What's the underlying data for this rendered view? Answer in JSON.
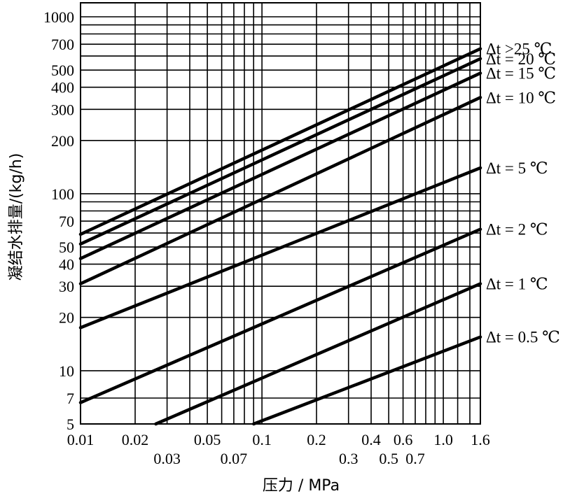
{
  "chart_data": {
    "type": "line",
    "xscale": "log",
    "yscale": "log",
    "xlabel": "压力 / MPa",
    "ylabel": "凝结水排量/(kg/h)",
    "xlim": [
      0.01,
      1.6
    ],
    "ylim": [
      5,
      1200
    ],
    "grid": true,
    "legend": "right, label at end of each line",
    "x_ticks": [
      {
        "value": 0.01,
        "label": "0.01",
        "row": "upper"
      },
      {
        "value": 0.02,
        "label": "0.02",
        "row": "upper"
      },
      {
        "value": 0.03,
        "label": "0.03",
        "row": "lower"
      },
      {
        "value": 0.05,
        "label": "0.05",
        "row": "upper"
      },
      {
        "value": 0.07,
        "label": "0.07",
        "row": "lower"
      },
      {
        "value": 0.1,
        "label": "0.1",
        "row": "upper"
      },
      {
        "value": 0.2,
        "label": "0.2",
        "row": "upper"
      },
      {
        "value": 0.3,
        "label": "0.3",
        "row": "lower"
      },
      {
        "value": 0.4,
        "label": "0.4",
        "row": "upper"
      },
      {
        "value": 0.5,
        "label": "0.5",
        "row": "lower"
      },
      {
        "value": 0.6,
        "label": "0.6",
        "row": "upper"
      },
      {
        "value": 0.7,
        "label": "0.7",
        "row": "lower"
      },
      {
        "value": 1.0,
        "label": "1.0",
        "row": "upper"
      },
      {
        "value": 1.6,
        "label": "1.6",
        "row": "upper"
      }
    ],
    "y_ticks": [
      {
        "value": 5,
        "label": "5"
      },
      {
        "value": 7,
        "label": "7"
      },
      {
        "value": 10,
        "label": "10"
      },
      {
        "value": 20,
        "label": "20"
      },
      {
        "value": 30,
        "label": "30"
      },
      {
        "value": 40,
        "label": "40"
      },
      {
        "value": 50,
        "label": "50"
      },
      {
        "value": 70,
        "label": "70"
      },
      {
        "value": 100,
        "label": "100"
      },
      {
        "value": 200,
        "label": "200"
      },
      {
        "value": 300,
        "label": "300"
      },
      {
        "value": 400,
        "label": "400"
      },
      {
        "value": 500,
        "label": "500"
      },
      {
        "value": 700,
        "label": "700"
      },
      {
        "value": 1000,
        "label": "1000"
      }
    ],
    "x_grid": [
      0.01,
      0.02,
      0.03,
      0.04,
      0.05,
      0.06,
      0.07,
      0.08,
      0.09,
      0.1,
      0.2,
      0.3,
      0.4,
      0.5,
      0.6,
      0.7,
      0.8,
      0.9,
      1.0,
      1.2,
      1.4,
      1.6
    ],
    "y_grid": [
      5,
      7,
      10,
      20,
      30,
      40,
      50,
      60,
      70,
      80,
      90,
      100,
      200,
      300,
      400,
      500,
      600,
      700,
      800,
      900,
      1000
    ],
    "series": [
      {
        "name": "Δt >25 ℃",
        "x": [
          0.01,
          1.6
        ],
        "y": [
          59,
          660
        ]
      },
      {
        "name": "Δt = 20 ℃",
        "x": [
          0.01,
          1.6
        ],
        "y": [
          52,
          580
        ]
      },
      {
        "name": "Δt = 15 ℃",
        "x": [
          0.01,
          1.6
        ],
        "y": [
          43,
          480
        ]
      },
      {
        "name": "Δt = 10 ℃",
        "x": [
          0.01,
          1.6
        ],
        "y": [
          31,
          350
        ]
      },
      {
        "name": "Δt = 5 ℃",
        "x": [
          0.01,
          1.6
        ],
        "y": [
          17.5,
          140
        ]
      },
      {
        "name": "Δt = 2 ℃",
        "x": [
          0.01,
          1.6
        ],
        "y": [
          6.6,
          63
        ]
      },
      {
        "name": "Δt = 1 ℃",
        "x": [
          0.026,
          1.6
        ],
        "y": [
          5,
          31
        ]
      },
      {
        "name": "Δt = 0.5 ℃",
        "x": [
          0.09,
          1.6
        ],
        "y": [
          5,
          15.5
        ]
      }
    ]
  }
}
